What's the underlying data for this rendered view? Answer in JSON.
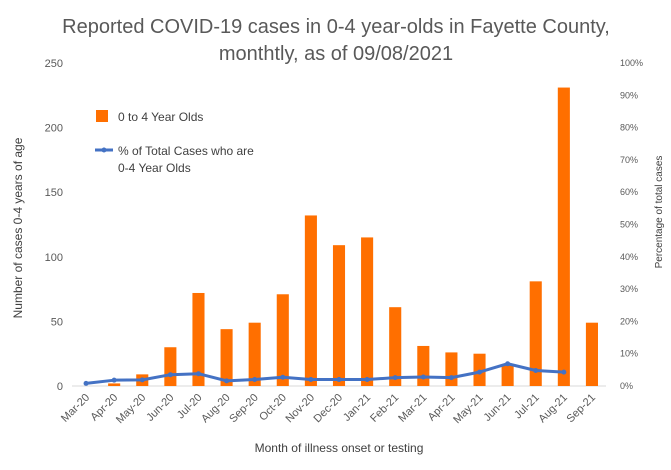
{
  "chart_data": {
    "type": "bar",
    "title": "Reported COVID-19 cases in 0-4 year-olds in Fayette County, monthtly, as of 09/08/2021",
    "title_lines": [
      "Reported COVID-19 cases in 0-4 year-olds in Fayette County,",
      "monthtly, as of 09/08/2021"
    ],
    "xlabel": "Month of illness onset or testing",
    "ylabel": "Number of cases 0-4 years of age",
    "y2label": "Percentage of total cases",
    "categories": [
      "Mar-20",
      "Apr-20",
      "May-20",
      "Jun-20",
      "Jul-20",
      "Aug-20",
      "Sep-20",
      "Oct-20",
      "Nov-20",
      "Dec-20",
      "Jan-21",
      "Feb-21",
      "Mar-21",
      "Apr-21",
      "May-21",
      "Jun-21",
      "Jul-21",
      "Aug-21",
      "Sep-21"
    ],
    "ylim": [
      0,
      250
    ],
    "yticks": [
      "0",
      "50",
      "100",
      "150",
      "200",
      "250"
    ],
    "y2lim": [
      0,
      100
    ],
    "y2ticks": [
      "0%",
      "10%",
      "20%",
      "30%",
      "40%",
      "50%",
      "60%",
      "70%",
      "80%",
      "90%",
      "100%"
    ],
    "grid": false,
    "legend_position": "top-left",
    "series": [
      {
        "name": "0 to 4 Year Olds",
        "type": "bar",
        "axis": "left",
        "color": "#FF6F00",
        "values": [
          0,
          2,
          9,
          30,
          72,
          44,
          49,
          71,
          132,
          109,
          115,
          61,
          31,
          26,
          25,
          17,
          81,
          231,
          49
        ]
      },
      {
        "name": "% of Total Cases who are 0-4 Year Olds",
        "legend_lines": [
          "% of Total Cases who are",
          "0-4 Year Olds"
        ],
        "type": "line",
        "axis": "right",
        "color": "#4472C4",
        "values": [
          0.8,
          1.8,
          1.9,
          3.5,
          3.8,
          1.6,
          2.0,
          2.7,
          2.0,
          2.0,
          2.0,
          2.6,
          2.8,
          2.6,
          4.3,
          6.9,
          4.8,
          4.3,
          null
        ]
      }
    ]
  }
}
